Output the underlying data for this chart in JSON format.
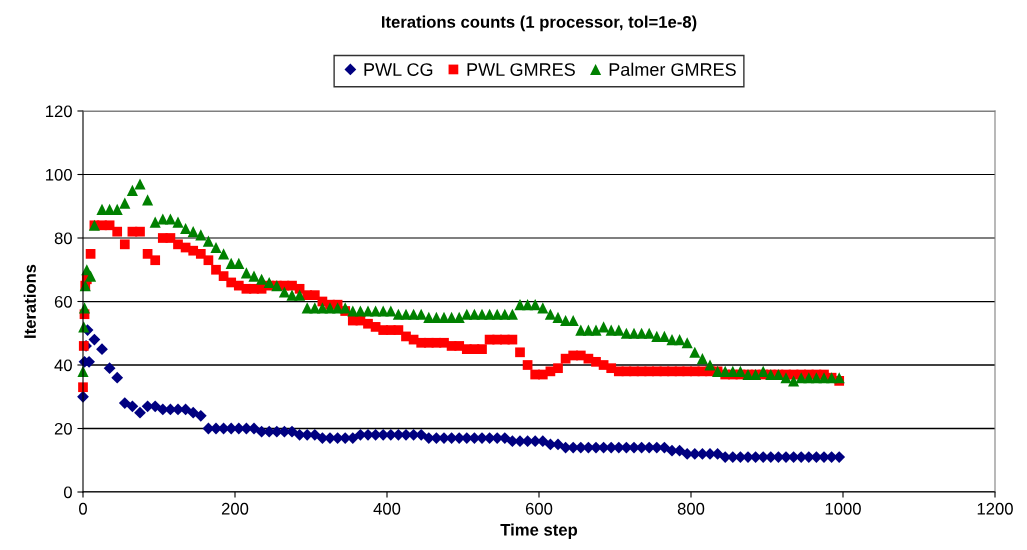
{
  "chart_data": {
    "type": "scatter",
    "title": "Iterations counts (1 processor, tol=1e-8)",
    "xlabel": "Time step",
    "ylabel": "Iterations",
    "xlim": [
      0,
      1200
    ],
    "xticks": [
      0,
      200,
      400,
      600,
      800,
      1000,
      1200
    ],
    "ylim": [
      0,
      120
    ],
    "yticks": [
      0,
      20,
      40,
      60,
      80,
      100,
      120
    ],
    "grid": "y",
    "legend": "top",
    "series": [
      {
        "name": "PWL CG",
        "color": "#000080",
        "marker": "diamond",
        "x": [
          0,
          2,
          4,
          6,
          8,
          15,
          25,
          35,
          45,
          55,
          65,
          75,
          85,
          95,
          105,
          115,
          125,
          135,
          145,
          155,
          165,
          175,
          185,
          195,
          205,
          215,
          225,
          235,
          245,
          255,
          265,
          275,
          285,
          295,
          305,
          315,
          325,
          335,
          345,
          355,
          365,
          375,
          385,
          395,
          405,
          415,
          425,
          435,
          445,
          455,
          465,
          475,
          485,
          495,
          505,
          515,
          525,
          535,
          545,
          555,
          565,
          575,
          585,
          595,
          605,
          615,
          625,
          635,
          645,
          655,
          665,
          675,
          685,
          695,
          705,
          715,
          725,
          735,
          745,
          755,
          765,
          775,
          785,
          795,
          805,
          815,
          825,
          835,
          845,
          855,
          865,
          875,
          885,
          895,
          905,
          915,
          925,
          935,
          945,
          955,
          965,
          975,
          985,
          995
        ],
        "values": [
          30,
          41,
          46,
          51,
          41,
          48,
          45,
          39,
          36,
          28,
          27,
          25,
          27,
          27,
          26,
          26,
          26,
          26,
          25,
          24,
          20,
          20,
          20,
          20,
          20,
          20,
          20,
          19,
          19,
          19,
          19,
          19,
          18,
          18,
          18,
          17,
          17,
          17,
          17,
          17,
          18,
          18,
          18,
          18,
          18,
          18,
          18,
          18,
          18,
          17,
          17,
          17,
          17,
          17,
          17,
          17,
          17,
          17,
          17,
          17,
          16,
          16,
          16,
          16,
          16,
          15,
          15,
          14,
          14,
          14,
          14,
          14,
          14,
          14,
          14,
          14,
          14,
          14,
          14,
          14,
          14,
          13,
          13,
          12,
          12,
          12,
          12,
          12,
          11,
          11,
          11,
          11,
          11,
          11,
          11,
          11,
          11,
          11,
          11,
          11,
          11,
          11,
          11,
          11
        ]
      },
      {
        "name": "PWL GMRES",
        "color": "#ff0000",
        "marker": "square",
        "x": [
          0,
          1,
          2,
          3,
          5,
          10,
          15,
          25,
          35,
          45,
          55,
          65,
          75,
          85,
          95,
          105,
          115,
          125,
          135,
          145,
          155,
          165,
          175,
          185,
          195,
          205,
          215,
          225,
          235,
          245,
          255,
          265,
          275,
          285,
          295,
          305,
          315,
          325,
          335,
          345,
          355,
          365,
          375,
          385,
          395,
          405,
          415,
          425,
          435,
          445,
          455,
          465,
          475,
          485,
          495,
          505,
          515,
          525,
          535,
          545,
          555,
          565,
          575,
          585,
          595,
          605,
          615,
          625,
          635,
          645,
          655,
          665,
          675,
          685,
          695,
          705,
          715,
          725,
          735,
          745,
          755,
          765,
          775,
          785,
          795,
          805,
          815,
          825,
          835,
          845,
          855,
          865,
          875,
          885,
          895,
          905,
          915,
          925,
          935,
          945,
          955,
          965,
          975,
          985,
          995
        ],
        "values": [
          33,
          46,
          56,
          65,
          67,
          75,
          84,
          84,
          84,
          82,
          78,
          82,
          82,
          75,
          73,
          80,
          80,
          78,
          77,
          76,
          75,
          73,
          70,
          68,
          66,
          65,
          64,
          64,
          64,
          65,
          65,
          65,
          65,
          64,
          62,
          62,
          60,
          59,
          59,
          57,
          54,
          54,
          53,
          52,
          51,
          51,
          51,
          49,
          48,
          47,
          47,
          47,
          47,
          46,
          46,
          45,
          45,
          45,
          48,
          48,
          48,
          48,
          44,
          40,
          37,
          37,
          38,
          39,
          42,
          43,
          43,
          42,
          41,
          40,
          39,
          38,
          38,
          38,
          38,
          38,
          38,
          38,
          38,
          38,
          38,
          38,
          38,
          38,
          38,
          37,
          37,
          37,
          37,
          37,
          37,
          37,
          37,
          37,
          37,
          37,
          37,
          37,
          37,
          36,
          35
        ]
      },
      {
        "name": "Palmer GMRES",
        "color": "#008000",
        "marker": "triangle",
        "x": [
          0,
          1,
          2,
          3,
          5,
          10,
          15,
          25,
          35,
          45,
          55,
          65,
          75,
          85,
          95,
          105,
          115,
          125,
          135,
          145,
          155,
          165,
          175,
          185,
          195,
          205,
          215,
          225,
          235,
          245,
          255,
          265,
          275,
          285,
          295,
          305,
          315,
          325,
          335,
          345,
          355,
          365,
          375,
          385,
          395,
          405,
          415,
          425,
          435,
          445,
          455,
          465,
          475,
          485,
          495,
          505,
          515,
          525,
          535,
          545,
          555,
          565,
          575,
          585,
          595,
          605,
          615,
          625,
          635,
          645,
          655,
          665,
          675,
          685,
          695,
          705,
          715,
          725,
          735,
          745,
          755,
          765,
          775,
          785,
          795,
          805,
          815,
          825,
          835,
          845,
          855,
          865,
          875,
          885,
          895,
          905,
          915,
          925,
          935,
          945,
          955,
          965,
          975,
          985,
          995
        ],
        "values": [
          38,
          52,
          58,
          65,
          70,
          68,
          84,
          89,
          89,
          89,
          91,
          95,
          97,
          92,
          85,
          86,
          86,
          85,
          83,
          82,
          81,
          79,
          77,
          75,
          72,
          72,
          69,
          68,
          67,
          66,
          65,
          63,
          62,
          62,
          58,
          58,
          58,
          58,
          58,
          58,
          57,
          57,
          57,
          57,
          57,
          57,
          56,
          56,
          56,
          56,
          55,
          55,
          55,
          55,
          55,
          56,
          56,
          56,
          56,
          56,
          56,
          56,
          59,
          59,
          59,
          58,
          56,
          55,
          54,
          54,
          51,
          51,
          51,
          52,
          51,
          51,
          50,
          50,
          50,
          50,
          49,
          49,
          48,
          48,
          47,
          44,
          42,
          40,
          38,
          38,
          38,
          38,
          37,
          37,
          38,
          37,
          37,
          36,
          35,
          36,
          36,
          36,
          36,
          36,
          36
        ]
      }
    ]
  }
}
